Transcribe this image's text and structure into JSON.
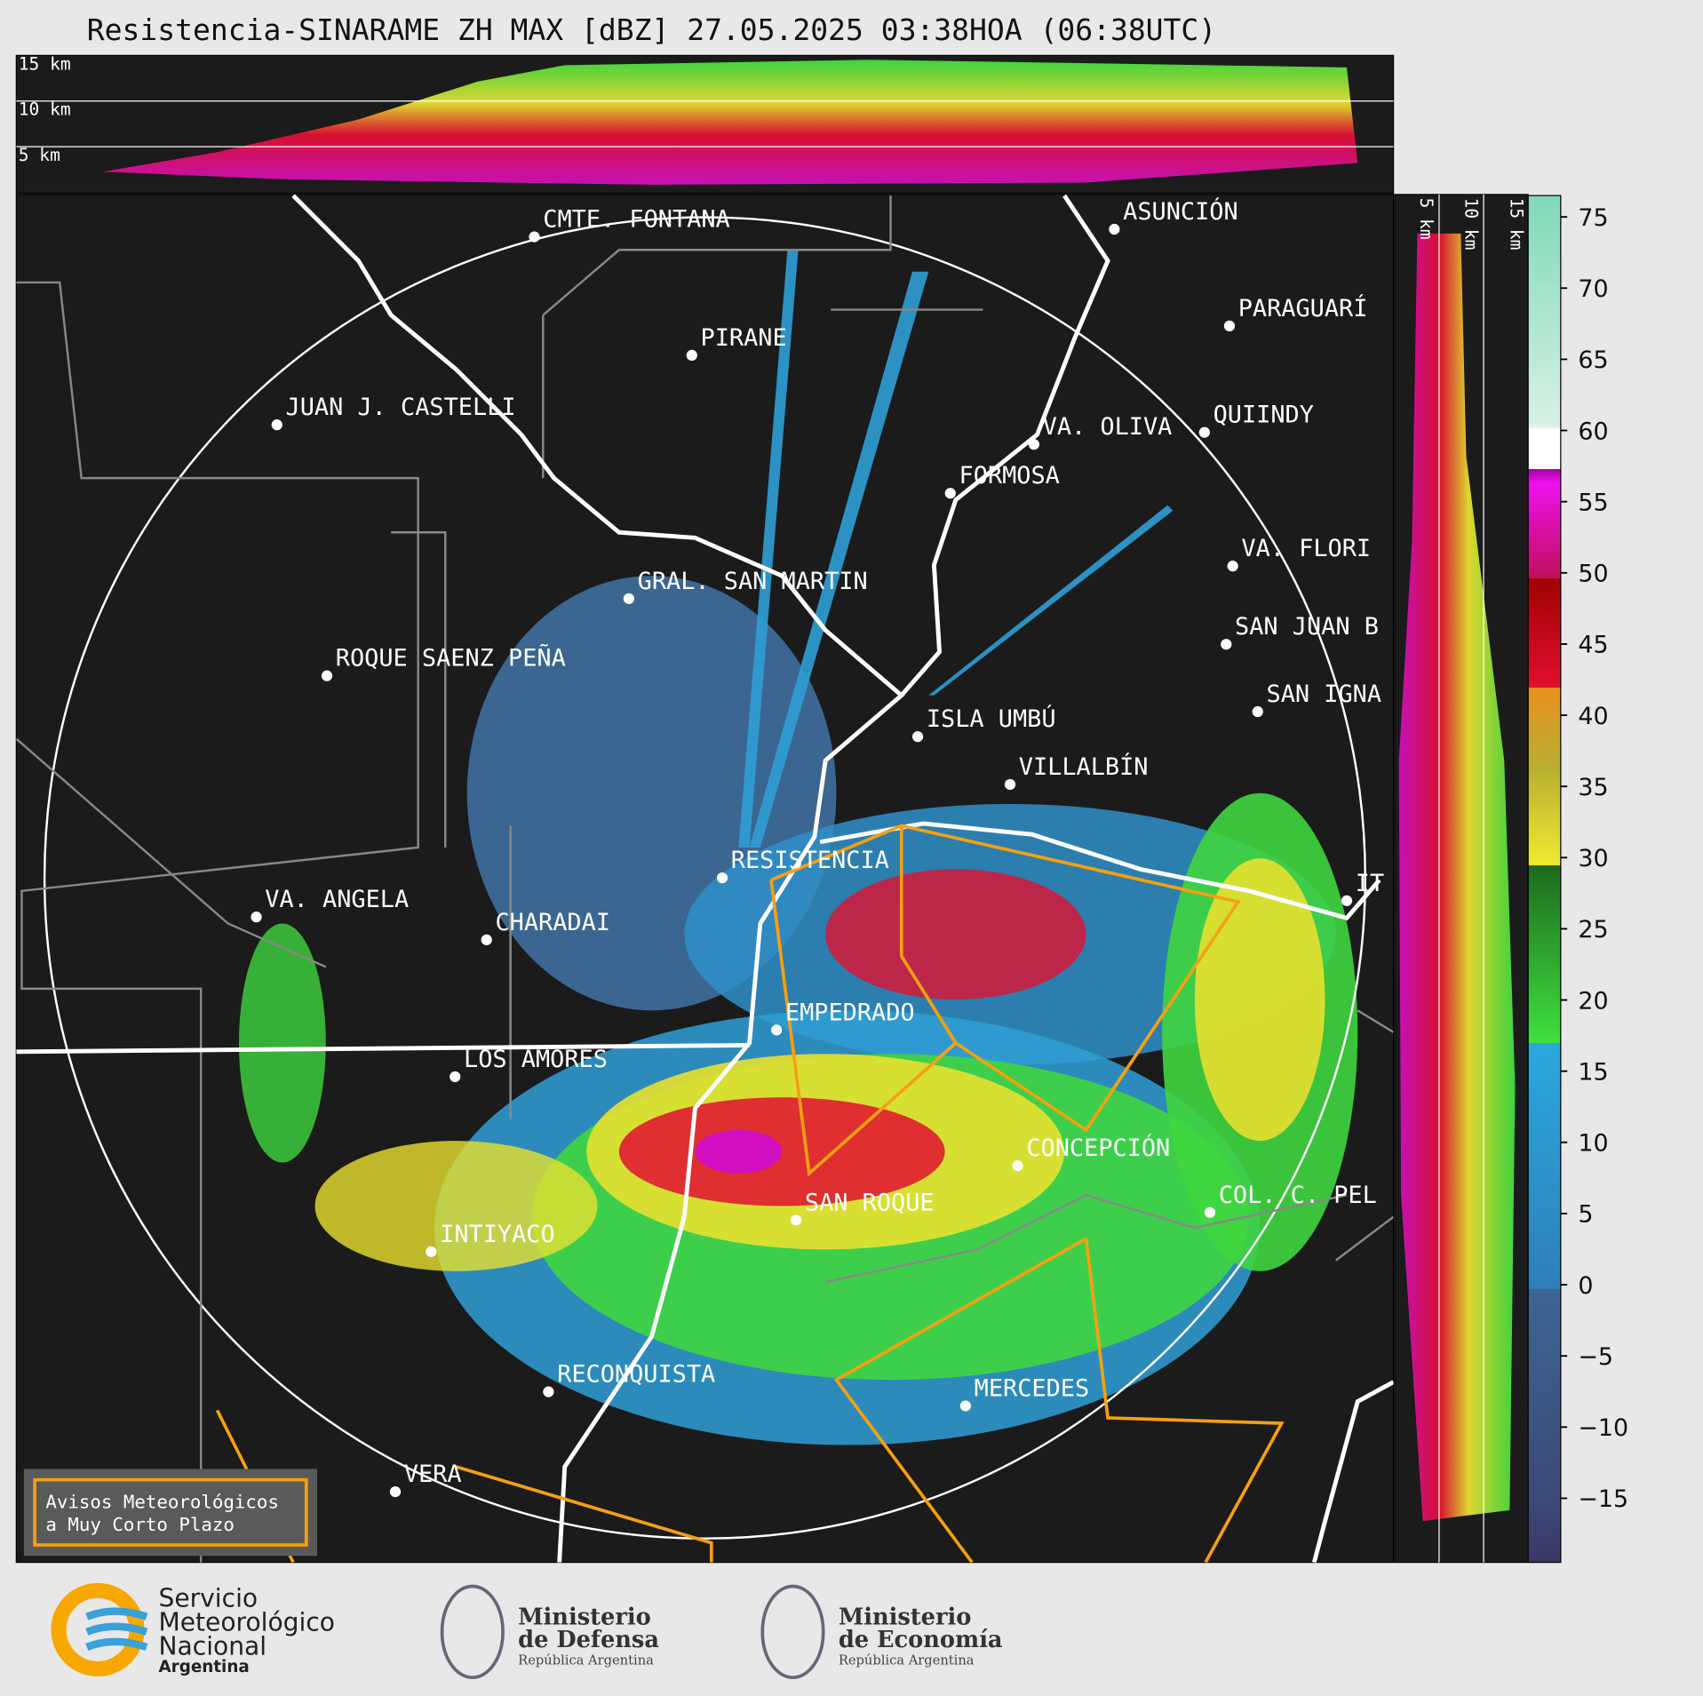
{
  "header": {
    "title": "Resistencia-SINARAME ZH MAX [dBZ] 27.05.2025 03:38HOA (06:38UTC)"
  },
  "cross_section": {
    "height_labels": [
      "15 km",
      "10 km",
      "5 km"
    ]
  },
  "side_section": {
    "height_labels": [
      "5 km",
      "10 km",
      "15 km"
    ]
  },
  "map": {
    "places": [
      "CMTE. FONTANA",
      "ASUNCIÓN",
      "PARAGUARÍ",
      "PIRANE",
      "JUAN J. CASTELLI",
      "VA. OLIVA",
      "QUIINDY",
      "FORMOSA",
      "VA. FLORI",
      "GRAL. SAN MARTIN",
      "SAN JUAN B",
      "ROQUE SAENZ PEÑA",
      "SAN IGNA",
      "ISLA UMBÚ",
      "VILLALBÍN",
      "RESISTENCIA",
      "VA. ANGELA",
      "CHARADAI",
      "IT",
      "EMPEDRADO",
      "LOS AMORES",
      "CONCEPCIÓN",
      "COL. C. PEL",
      "SAN ROQUE",
      "INTIYACO",
      "RECONQUISTA",
      "MERCEDES",
      "VERA"
    ]
  },
  "legend": {
    "lines": [
      "Avisos Meteorológicos",
      "a Muy Corto Plazo"
    ]
  },
  "colorbar": {
    "lim": [
      -19.5,
      76.5
    ],
    "ticks": [
      75,
      70,
      65,
      60,
      55,
      50,
      45,
      40,
      35,
      30,
      25,
      20,
      15,
      10,
      5,
      0,
      {
        "value": -5,
        "label": "−5"
      },
      {
        "value": -10,
        "label": "−10"
      },
      {
        "value": -15,
        "label": "−15"
      }
    ]
  },
  "footer": {
    "logos": [
      {
        "lines": [
          "Servicio",
          "Meteorológico",
          "Nacional",
          "Argentina"
        ]
      },
      {
        "lines": [
          "Ministerio",
          "de Defensa",
          "República Argentina"
        ]
      },
      {
        "lines": [
          "Ministerio",
          "de Economía",
          "República Argentina"
        ]
      }
    ]
  }
}
